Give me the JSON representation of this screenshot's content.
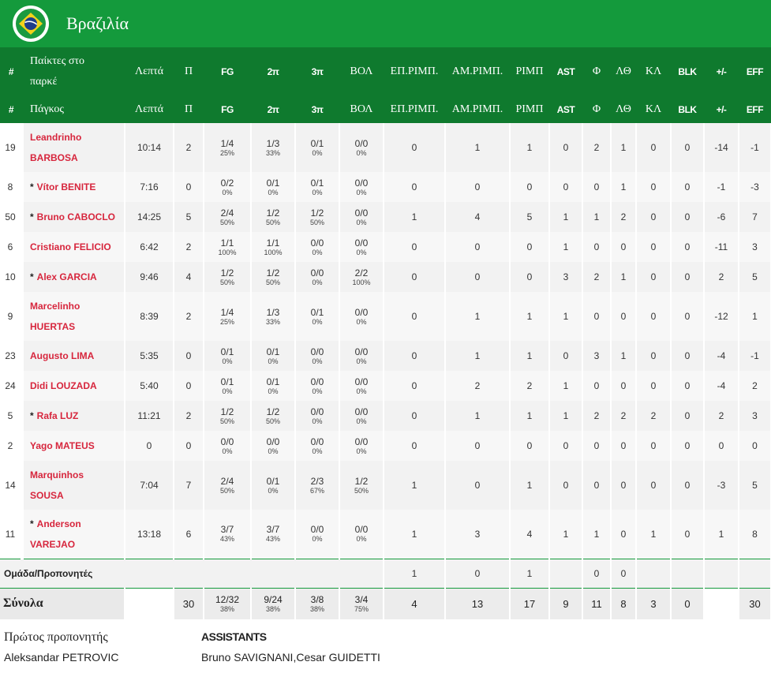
{
  "team": {
    "name": "Βραζιλία",
    "flag_colors": {
      "green": "#1b9a3f",
      "yellow": "#f2d21b",
      "blue": "#1f3d8a"
    }
  },
  "header_row1": {
    "num": "#",
    "name_line1": "Παίκτες στο",
    "name_line2": "παρκέ",
    "min": "Λεπτά",
    "pts": "Π",
    "fg": "FG",
    "two": "2π",
    "three": "3π",
    "ft": "ΒΟΛ",
    "oreb": "ΕΠ.ΡΙΜΠ.",
    "dreb": "ΑΜ.ΡΙΜΠ.",
    "reb": "ΡΙΜΠ",
    "ast": "AST",
    "pf": "Φ",
    "to": "ΛΘ",
    "stl": "ΚΛ",
    "blk": "BLK",
    "pm": "+/-",
    "eff": "EFF"
  },
  "header_row2": {
    "num": "#",
    "name": "Πάγκος",
    "min": "Λεπτά",
    "pts": "Π",
    "fg": "FG",
    "two": "2π",
    "three": "3π",
    "ft": "ΒΟΛ",
    "oreb": "ΕΠ.ΡΙΜΠ.",
    "dreb": "ΑΜ.ΡΙΜΠ.",
    "reb": "ΡΙΜΠ",
    "ast": "AST",
    "pf": "Φ",
    "to": "ΛΘ",
    "stl": "ΚΛ",
    "blk": "BLK",
    "pm": "+/-",
    "eff": "EFF"
  },
  "players": [
    {
      "num": "19",
      "starter": false,
      "first": "Leandrinho",
      "last": "BARBOSA",
      "two_line": true,
      "min": "10:14",
      "pts": "2",
      "fg": "1/4",
      "fg_pct": "25%",
      "two": "1/3",
      "two_pct": "33%",
      "three": "0/1",
      "three_pct": "0%",
      "ft": "0/0",
      "ft_pct": "0%",
      "oreb": "0",
      "dreb": "1",
      "reb": "1",
      "ast": "0",
      "pf": "2",
      "to": "1",
      "stl": "0",
      "blk": "0",
      "pm": "-14",
      "eff": "-1"
    },
    {
      "num": "8",
      "starter": true,
      "first": "Vítor",
      "last": "BENITE",
      "two_line": false,
      "min": "7:16",
      "pts": "0",
      "fg": "0/2",
      "fg_pct": "0%",
      "two": "0/1",
      "two_pct": "0%",
      "three": "0/1",
      "three_pct": "0%",
      "ft": "0/0",
      "ft_pct": "0%",
      "oreb": "0",
      "dreb": "0",
      "reb": "0",
      "ast": "0",
      "pf": "0",
      "to": "1",
      "stl": "0",
      "blk": "0",
      "pm": "-1",
      "eff": "-3"
    },
    {
      "num": "50",
      "starter": true,
      "first": "Bruno",
      "last": "CABOCLO",
      "two_line": false,
      "min": "14:25",
      "pts": "5",
      "fg": "2/4",
      "fg_pct": "50%",
      "two": "1/2",
      "two_pct": "50%",
      "three": "1/2",
      "three_pct": "50%",
      "ft": "0/0",
      "ft_pct": "0%",
      "oreb": "1",
      "dreb": "4",
      "reb": "5",
      "ast": "1",
      "pf": "1",
      "to": "2",
      "stl": "0",
      "blk": "0",
      "pm": "-6",
      "eff": "7"
    },
    {
      "num": "6",
      "starter": false,
      "first": "Cristiano",
      "last": "FELICIO",
      "two_line": false,
      "min": "6:42",
      "pts": "2",
      "fg": "1/1",
      "fg_pct": "100%",
      "two": "1/1",
      "two_pct": "100%",
      "three": "0/0",
      "three_pct": "0%",
      "ft": "0/0",
      "ft_pct": "0%",
      "oreb": "0",
      "dreb": "0",
      "reb": "0",
      "ast": "1",
      "pf": "0",
      "to": "0",
      "stl": "0",
      "blk": "0",
      "pm": "-11",
      "eff": "3"
    },
    {
      "num": "10",
      "starter": true,
      "first": "Alex",
      "last": "GARCIA",
      "two_line": false,
      "min": "9:46",
      "pts": "4",
      "fg": "1/2",
      "fg_pct": "50%",
      "two": "1/2",
      "two_pct": "50%",
      "three": "0/0",
      "three_pct": "0%",
      "ft": "2/2",
      "ft_pct": "100%",
      "oreb": "0",
      "dreb": "0",
      "reb": "0",
      "ast": "3",
      "pf": "2",
      "to": "1",
      "stl": "0",
      "blk": "0",
      "pm": "2",
      "eff": "5"
    },
    {
      "num": "9",
      "starter": false,
      "first": "Marcelinho",
      "last": "HUERTAS",
      "two_line": true,
      "min": "8:39",
      "pts": "2",
      "fg": "1/4",
      "fg_pct": "25%",
      "two": "1/3",
      "two_pct": "33%",
      "three": "0/1",
      "three_pct": "0%",
      "ft": "0/0",
      "ft_pct": "0%",
      "oreb": "0",
      "dreb": "1",
      "reb": "1",
      "ast": "1",
      "pf": "0",
      "to": "0",
      "stl": "0",
      "blk": "0",
      "pm": "-12",
      "eff": "1"
    },
    {
      "num": "23",
      "starter": false,
      "first": "Augusto",
      "last": "LIMA",
      "two_line": false,
      "min": "5:35",
      "pts": "0",
      "fg": "0/1",
      "fg_pct": "0%",
      "two": "0/1",
      "two_pct": "0%",
      "three": "0/0",
      "three_pct": "0%",
      "ft": "0/0",
      "ft_pct": "0%",
      "oreb": "0",
      "dreb": "1",
      "reb": "1",
      "ast": "0",
      "pf": "3",
      "to": "1",
      "stl": "0",
      "blk": "0",
      "pm": "-4",
      "eff": "-1"
    },
    {
      "num": "24",
      "starter": false,
      "first": "Didi",
      "last": "LOUZADA",
      "two_line": false,
      "min": "5:40",
      "pts": "0",
      "fg": "0/1",
      "fg_pct": "0%",
      "two": "0/1",
      "two_pct": "0%",
      "three": "0/0",
      "three_pct": "0%",
      "ft": "0/0",
      "ft_pct": "0%",
      "oreb": "0",
      "dreb": "2",
      "reb": "2",
      "ast": "1",
      "pf": "0",
      "to": "0",
      "stl": "0",
      "blk": "0",
      "pm": "-4",
      "eff": "2"
    },
    {
      "num": "5",
      "starter": true,
      "first": "Rafa",
      "last": "LUZ",
      "two_line": false,
      "min": "11:21",
      "pts": "2",
      "fg": "1/2",
      "fg_pct": "50%",
      "two": "1/2",
      "two_pct": "50%",
      "three": "0/0",
      "three_pct": "0%",
      "ft": "0/0",
      "ft_pct": "0%",
      "oreb": "0",
      "dreb": "1",
      "reb": "1",
      "ast": "1",
      "pf": "2",
      "to": "2",
      "stl": "2",
      "blk": "0",
      "pm": "2",
      "eff": "3"
    },
    {
      "num": "2",
      "starter": false,
      "first": "Yago",
      "last": "MATEUS",
      "two_line": false,
      "min": "0",
      "pts": "0",
      "fg": "0/0",
      "fg_pct": "0%",
      "two": "0/0",
      "two_pct": "0%",
      "three": "0/0",
      "three_pct": "0%",
      "ft": "0/0",
      "ft_pct": "0%",
      "oreb": "0",
      "dreb": "0",
      "reb": "0",
      "ast": "0",
      "pf": "0",
      "to": "0",
      "stl": "0",
      "blk": "0",
      "pm": "0",
      "eff": "0"
    },
    {
      "num": "14",
      "starter": false,
      "first": "Marquinhos",
      "last": "SOUSA",
      "two_line": true,
      "min": "7:04",
      "pts": "7",
      "fg": "2/4",
      "fg_pct": "50%",
      "two": "0/1",
      "two_pct": "0%",
      "three": "2/3",
      "three_pct": "67%",
      "ft": "1/2",
      "ft_pct": "50%",
      "oreb": "1",
      "dreb": "0",
      "reb": "1",
      "ast": "0",
      "pf": "0",
      "to": "0",
      "stl": "0",
      "blk": "0",
      "pm": "-3",
      "eff": "5"
    },
    {
      "num": "11",
      "starter": true,
      "first": "Anderson",
      "last": "VAREJAO",
      "two_line": true,
      "min": "13:18",
      "pts": "6",
      "fg": "3/7",
      "fg_pct": "43%",
      "two": "3/7",
      "two_pct": "43%",
      "three": "0/0",
      "three_pct": "0%",
      "ft": "0/0",
      "ft_pct": "0%",
      "oreb": "1",
      "dreb": "3",
      "reb": "4",
      "ast": "1",
      "pf": "1",
      "to": "0",
      "stl": "1",
      "blk": "0",
      "pm": "1",
      "eff": "8"
    }
  ],
  "team_row": {
    "label": "Ομάδα/Προπονητές",
    "oreb": "1",
    "dreb": "0",
    "reb": "1",
    "pf": "0",
    "to": "0"
  },
  "totals": {
    "label": "Σύνολα",
    "pts": "30",
    "fg": "12/32",
    "fg_pct": "38%",
    "two": "9/24",
    "two_pct": "38%",
    "three": "3/8",
    "three_pct": "38%",
    "ft": "3/4",
    "ft_pct": "75%",
    "oreb": "4",
    "dreb": "13",
    "reb": "17",
    "ast": "9",
    "pf": "11",
    "to": "8",
    "stl": "3",
    "blk": "0",
    "eff": "30"
  },
  "coaches": {
    "head_title": "Πρώτος προπονητής",
    "head_name": "Aleksandar PETROVIC",
    "assist_title": "ASSISTANTS",
    "assist_names": "Bruno SAVIGNANI,Cesar GUIDETTI"
  }
}
